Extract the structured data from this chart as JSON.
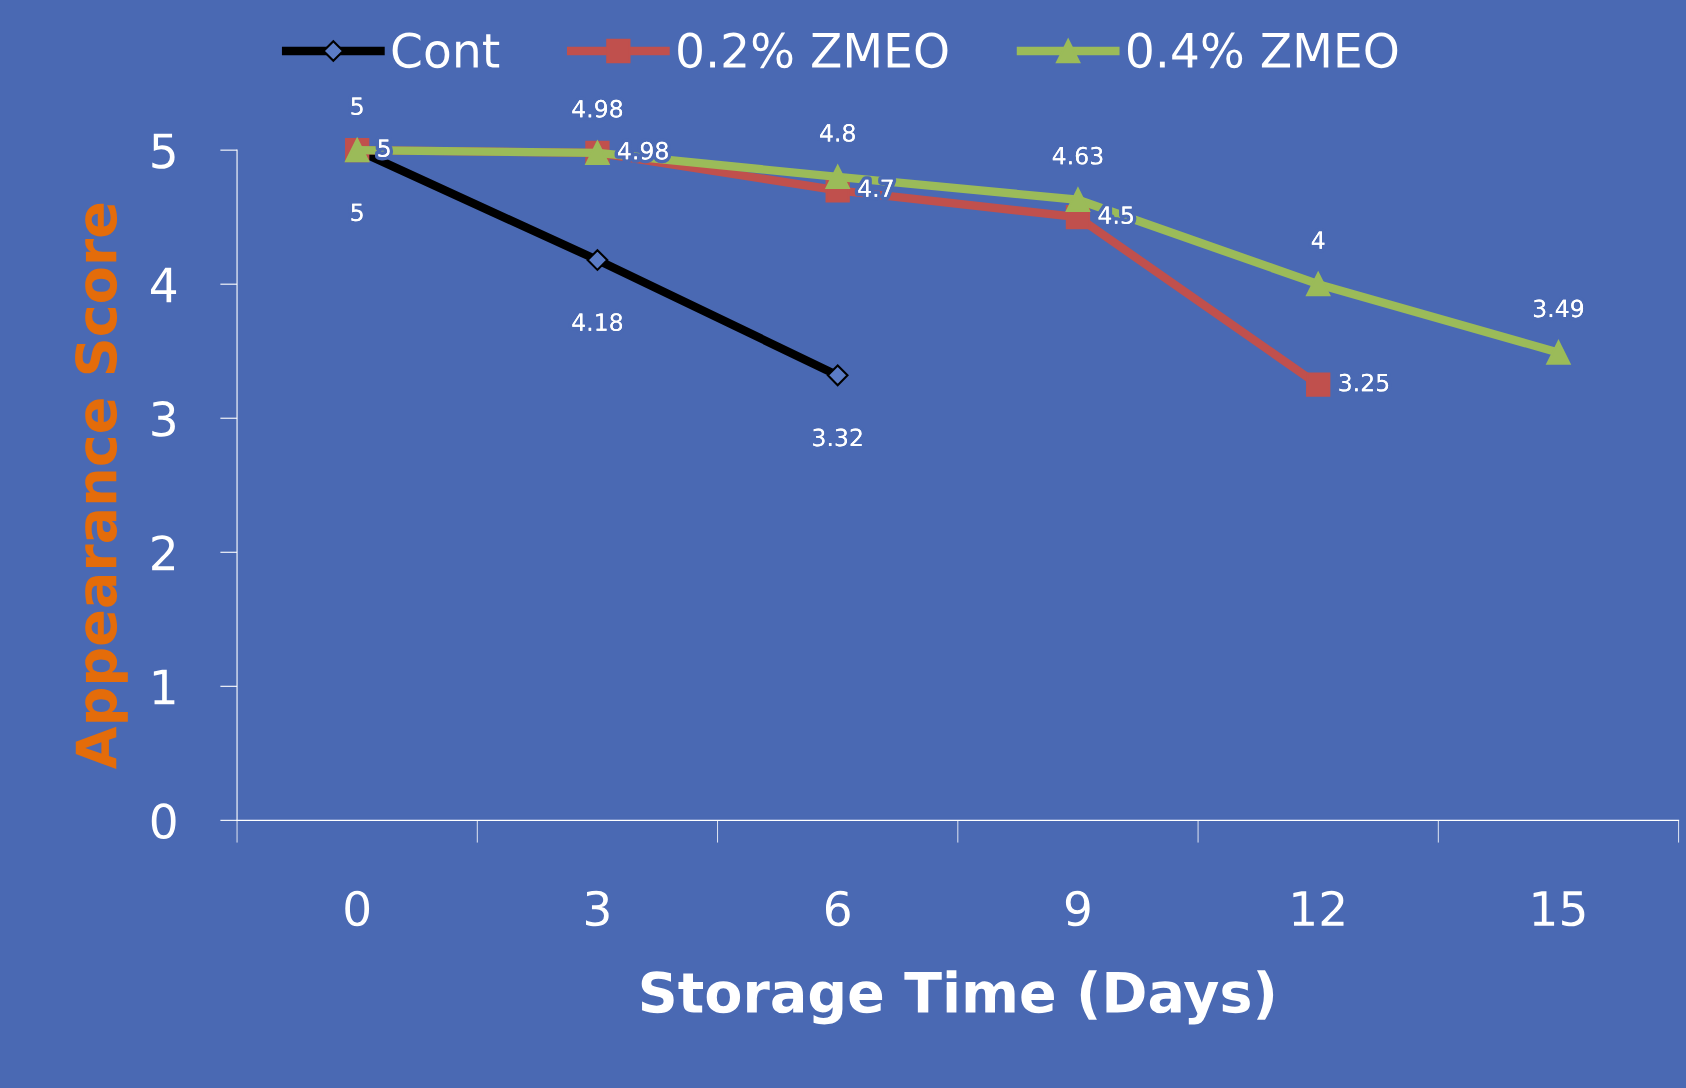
{
  "chart_data": {
    "type": "line",
    "xlabel": "Storage Time (Days)",
    "ylabel": "Appearance Score",
    "categories": [
      "0",
      "3",
      "6",
      "9",
      "12",
      "15"
    ],
    "series": [
      {
        "name": "Cont",
        "color": "#000000",
        "marker": "diamond",
        "values": [
          5,
          4.18,
          3.32,
          null,
          null,
          null
        ]
      },
      {
        "name": "0.2% ZMEO",
        "color": "#c0504d",
        "marker": "square",
        "values": [
          5,
          4.98,
          4.7,
          4.5,
          3.25,
          null
        ]
      },
      {
        "name": "0.4% ZMEO",
        "color": "#9bbb59",
        "marker": "triangle",
        "values": [
          5,
          4.98,
          4.8,
          4.63,
          4,
          3.49
        ]
      }
    ],
    "ylim": [
      0,
      5
    ],
    "yticks": [
      0,
      1,
      2,
      3,
      4,
      5
    ],
    "grid": false,
    "legend": "top",
    "data_labels": true
  }
}
